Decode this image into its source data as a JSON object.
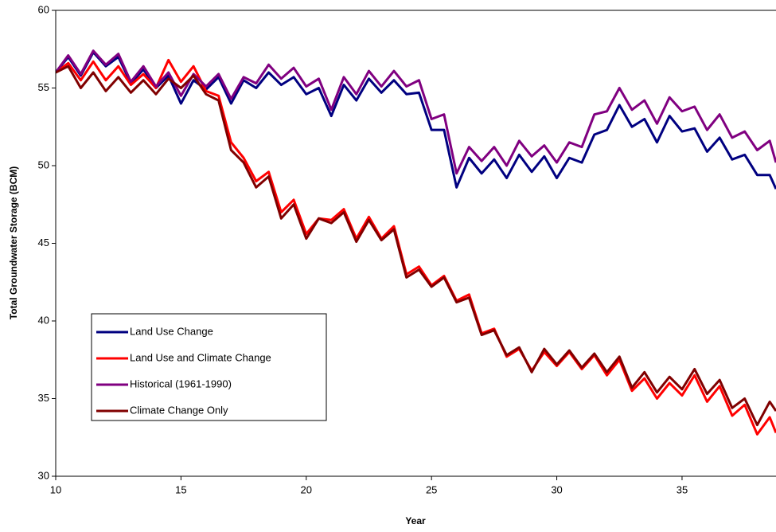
{
  "chart_data": {
    "type": "line",
    "x_label": "Year",
    "y_label": "Total Groundwater Storage (BCM)",
    "x": [
      10,
      10.5,
      11,
      11.5,
      12,
      12.5,
      13,
      13.5,
      14,
      14.5,
      15,
      15.5,
      16,
      16.5,
      17,
      17.5,
      18,
      18.5,
      19,
      19.5,
      20,
      20.5,
      21,
      21.5,
      22,
      22.5,
      23,
      23.5,
      24,
      24.5,
      25,
      25.5,
      26,
      26.5,
      27,
      27.5,
      28,
      28.5,
      29,
      29.5,
      30,
      30.5,
      31,
      31.5,
      32,
      32.5,
      33,
      33.5,
      34,
      34.5,
      35,
      35.5,
      36,
      36.5,
      37,
      37.5,
      38,
      38.5,
      38.75
    ],
    "series": [
      {
        "name": "Land Use Change",
        "color": "#000080",
        "values": [
          56.0,
          57.0,
          55.8,
          57.3,
          56.4,
          57.0,
          55.3,
          56.2,
          55.0,
          55.8,
          54.0,
          55.5,
          54.9,
          55.7,
          54.0,
          55.5,
          55.0,
          56.0,
          55.2,
          55.7,
          54.6,
          55.0,
          53.2,
          55.2,
          54.2,
          55.6,
          54.7,
          55.5,
          54.6,
          54.7,
          52.3,
          52.3,
          48.6,
          50.5,
          49.5,
          50.4,
          49.2,
          50.7,
          49.6,
          50.6,
          49.2,
          50.5,
          50.2,
          52.0,
          52.3,
          53.9,
          52.5,
          53.0,
          51.5,
          53.2,
          52.2,
          52.4,
          50.9,
          51.8,
          50.4,
          50.7,
          49.4,
          49.4,
          48.5
        ]
      },
      {
        "name": "Land Use and Climate Change",
        "color": "#ff0000",
        "values": [
          56.0,
          56.6,
          55.5,
          56.7,
          55.5,
          56.4,
          55.2,
          55.9,
          55.0,
          56.8,
          55.4,
          56.4,
          54.8,
          54.5,
          51.5,
          50.5,
          49.0,
          49.6,
          47.0,
          47.8,
          45.6,
          46.6,
          46.5,
          47.2,
          45.3,
          46.7,
          45.3,
          46.1,
          43.0,
          43.5,
          42.3,
          42.9,
          41.3,
          41.7,
          39.2,
          39.5,
          37.7,
          38.2,
          36.8,
          38.0,
          37.1,
          38.0,
          36.9,
          37.8,
          36.5,
          37.5,
          35.5,
          36.3,
          35.0,
          36.0,
          35.2,
          36.5,
          34.8,
          35.8,
          33.9,
          34.6,
          32.7,
          33.8,
          32.8
        ]
      },
      {
        "name": "Historical (1961-1990)",
        "color": "#800080",
        "values": [
          56.0,
          57.1,
          55.9,
          57.4,
          56.5,
          57.2,
          55.4,
          56.4,
          55.1,
          56.0,
          54.5,
          55.9,
          55.1,
          55.9,
          54.3,
          55.7,
          55.3,
          56.5,
          55.6,
          56.3,
          55.1,
          55.6,
          53.6,
          55.7,
          54.6,
          56.1,
          55.1,
          56.1,
          55.1,
          55.5,
          53.0,
          53.3,
          49.5,
          51.2,
          50.3,
          51.2,
          50.0,
          51.6,
          50.6,
          51.3,
          50.2,
          51.5,
          51.2,
          53.3,
          53.5,
          55.0,
          53.6,
          54.2,
          52.7,
          54.4,
          53.5,
          53.8,
          52.3,
          53.3,
          51.8,
          52.2,
          51.0,
          51.6,
          50.2
        ]
      },
      {
        "name": "Climate Change Only",
        "color": "#800000",
        "values": [
          56.0,
          56.4,
          55.0,
          56.0,
          54.8,
          55.7,
          54.7,
          55.5,
          54.6,
          55.6,
          55.0,
          55.8,
          54.6,
          54.2,
          51.0,
          50.2,
          48.6,
          49.3,
          46.6,
          47.5,
          45.3,
          46.6,
          46.3,
          47.0,
          45.1,
          46.5,
          45.2,
          45.9,
          42.8,
          43.3,
          42.2,
          42.8,
          41.2,
          41.5,
          39.1,
          39.4,
          37.8,
          38.3,
          36.7,
          38.2,
          37.2,
          38.1,
          37.0,
          37.9,
          36.7,
          37.7,
          35.7,
          36.7,
          35.4,
          36.4,
          35.6,
          36.9,
          35.3,
          36.2,
          34.4,
          35.0,
          33.3,
          34.8,
          34.2
        ]
      }
    ],
    "xlim": [
      10,
      38.75
    ],
    "xticks": [
      10,
      15,
      20,
      25,
      30,
      35
    ],
    "ylim": [
      30,
      60
    ],
    "yticks": [
      30,
      35,
      40,
      45,
      50,
      55,
      60
    ],
    "grid": false,
    "legend": "lower left"
  }
}
